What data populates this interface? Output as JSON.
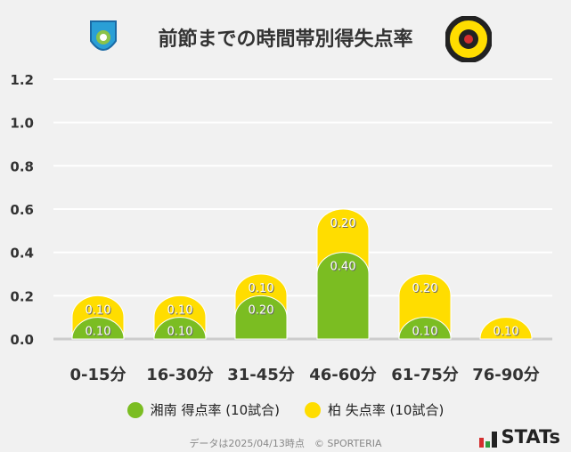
{
  "chart_data": {
    "type": "bar",
    "stacked": true,
    "title": "前節までの時間帯別得失点率",
    "categories": [
      "0-15分",
      "16-30分",
      "31-45分",
      "46-60分",
      "61-75分",
      "76-90分"
    ],
    "series": [
      {
        "name": "湘南 得点率 (10試合)",
        "color": "#7bbd22",
        "values": [
          0.1,
          0.1,
          0.2,
          0.4,
          0.1,
          0.0
        ]
      },
      {
        "name": "柏 失点率 (10試合)",
        "color": "#ffdd00",
        "values": [
          0.1,
          0.1,
          0.1,
          0.2,
          0.2,
          0.1
        ]
      }
    ],
    "ylim": [
      0,
      1.2
    ],
    "yticks": [
      "0.0",
      "0.2",
      "0.4",
      "0.6",
      "0.8",
      "1.0",
      "1.2"
    ],
    "grid": true,
    "legend": "bottom"
  },
  "footer": {
    "note": "データは2025/04/13時点　© SPORTERIA",
    "brand": "STATs"
  },
  "logos": {
    "home": "Shonan Bellmare",
    "away": "KASHIWA REYSOL"
  }
}
